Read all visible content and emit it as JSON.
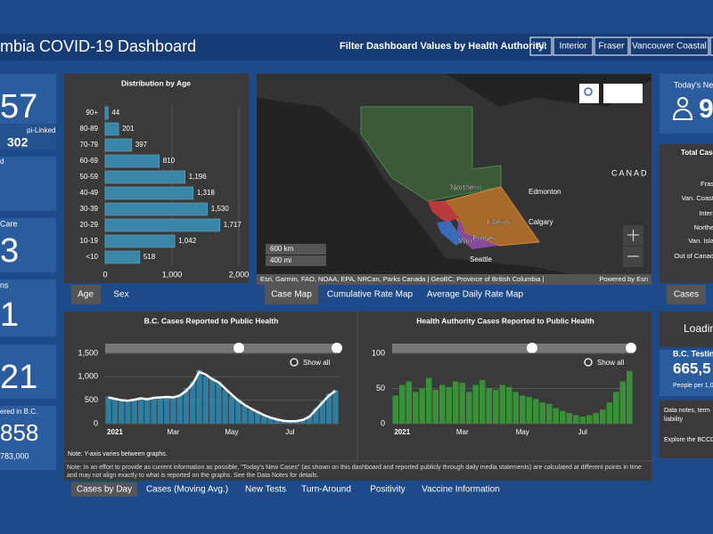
{
  "header": {
    "title": "mbia COVID-19 Dashboard",
    "filter_label": "Filter Dashboard Values by Health Authority:",
    "filters": [
      "All",
      "Interior",
      "Fraser",
      "Vancouver Coastal"
    ]
  },
  "left_panels": [
    {
      "value": "57",
      "label": "pi-Linked",
      "sub": "302"
    },
    {
      "label": "d"
    },
    {
      "label": "Care",
      "value": "3"
    },
    {
      "label": "ns",
      "value": "1"
    },
    {
      "value": "21"
    },
    {
      "label": "ered in B.C.",
      "value": "858",
      "sub": "783,000"
    }
  ],
  "age_tabs": [
    "Age",
    "Sex"
  ],
  "map": {
    "regions": [
      "Northern",
      "Interior",
      "Fraser",
      "Van"
    ],
    "places": [
      "Edmonton",
      "Calgary",
      "Seattle",
      "CANAD"
    ],
    "scale": [
      "600 km",
      "400 mi"
    ],
    "attribution": "Esri, Garmin, FAO, NOAA, EPA, NRCan, Parks Canada | GeoBC, Province of British Columbia |",
    "powered": "Powered by Esri",
    "tabs": [
      "Case Map",
      "Cumulative Rate Map",
      "Average Daily Rate Map"
    ]
  },
  "right_panels": {
    "new_title": "Today's New",
    "new_value": "9",
    "total_title": "Total Case",
    "total_items": [
      "Fras",
      "Van. Coast",
      "Interi",
      "Northe",
      "Van. Isla",
      "Out of Canad"
    ],
    "tab": "Cases",
    "loading": "Loadin",
    "testing_title": "B.C. Testing",
    "testing_value": "665,5",
    "testing_sub": "People per 1,0",
    "notes": [
      "Data notes, term",
      "liability",
      "Explore the BCCD"
    ]
  },
  "chart_data": [
    {
      "type": "bar",
      "orientation": "horizontal",
      "title": "Distribution by Age",
      "categories": [
        "90+",
        "80-89",
        "70-79",
        "60-69",
        "50-59",
        "40-49",
        "30-39",
        "20-29",
        "10-19",
        "<10"
      ],
      "values": [
        44,
        201,
        397,
        810,
        1196,
        1318,
        1530,
        1717,
        1042,
        518
      ],
      "value_labels": [
        "44",
        "201",
        "397",
        "810",
        "1,196",
        "1,318",
        "1,530",
        "1,717",
        "1,042",
        "518"
      ],
      "color": "#3b86a8",
      "xlim": [
        0,
        2000
      ],
      "xticks": [
        0,
        {
          "value": 1000,
          "label": "1,000"
        },
        {
          "value": 2000,
          "label": "2,000"
        }
      ],
      "grid": true
    },
    {
      "type": "bar",
      "title": "B.C. Cases Reported to Public Health",
      "show_all": "Show all",
      "note": "Note: Y-axis varies between graphs.",
      "categories": [
        null,
        "2021",
        null,
        null,
        null,
        null,
        null,
        null,
        null,
        null,
        "Mar",
        null,
        null,
        null,
        null,
        null,
        null,
        null,
        null,
        "May",
        null,
        null,
        null,
        null,
        null,
        null,
        null,
        null,
        "Jul",
        null,
        null,
        null,
        null,
        null,
        null,
        null
      ],
      "series": [
        {
          "type": "bar",
          "color": "#2f86ad",
          "values": [
            580,
            520,
            480,
            510,
            530,
            560,
            500,
            570,
            540,
            590,
            580,
            620,
            760,
            900,
            1150,
            1000,
            980,
            900,
            720,
            600,
            520,
            380,
            300,
            260,
            170,
            120,
            80,
            55,
            45,
            60,
            90,
            170,
            330,
            480,
            640,
            720
          ]
        },
        {
          "type": "line",
          "color": "#ffffff",
          "values": [
            560,
            530,
            500,
            490,
            510,
            540,
            520,
            550,
            560,
            570,
            560,
            600,
            700,
            850,
            1100,
            1050,
            950,
            880,
            750,
            620,
            500,
            400,
            320,
            250,
            180,
            130,
            90,
            60,
            50,
            55,
            80,
            150,
            300,
            450,
            600,
            700
          ]
        }
      ],
      "ylim": [
        0,
        1500
      ],
      "yticks": [
        0,
        500,
        {
          "value": 1000,
          "label": "1,000"
        },
        {
          "value": 1500,
          "label": "1,500"
        }
      ],
      "grid": true
    },
    {
      "type": "bar",
      "title": "Health Authority Cases Reported to Public Health",
      "show_all": "Show all",
      "categories": [
        null,
        "2021",
        null,
        null,
        null,
        null,
        null,
        null,
        null,
        null,
        "Mar",
        null,
        null,
        null,
        null,
        null,
        null,
        null,
        null,
        "May",
        null,
        null,
        null,
        null,
        null,
        null,
        null,
        null,
        "Jul",
        null,
        null,
        null,
        null,
        null,
        null,
        null
      ],
      "series": [
        {
          "type": "bar",
          "color": "#3a9a3a",
          "values": [
            40,
            55,
            60,
            45,
            50,
            65,
            48,
            55,
            52,
            60,
            58,
            45,
            55,
            62,
            50,
            48,
            55,
            52,
            45,
            40,
            38,
            35,
            30,
            28,
            22,
            18,
            15,
            12,
            10,
            12,
            15,
            20,
            30,
            45,
            60,
            75
          ]
        }
      ],
      "ylim": [
        0,
        100
      ],
      "yticks": [
        0,
        50,
        100
      ],
      "grid": true
    }
  ],
  "note": "Note: In an effort to provide as current information as possible, \"Today's New Cases\" (as shown on this dashboard and reported publicly through daily media statements) are calculated at different points in time and may not align exactly to what is reported on the graphs. See the Data Notes for details.",
  "bottom_tabs": [
    "Cases by Day",
    "Cases (Moving Avg.)",
    "New Tests",
    "Turn-Around",
    "Positivity",
    "Vaccine Information"
  ]
}
